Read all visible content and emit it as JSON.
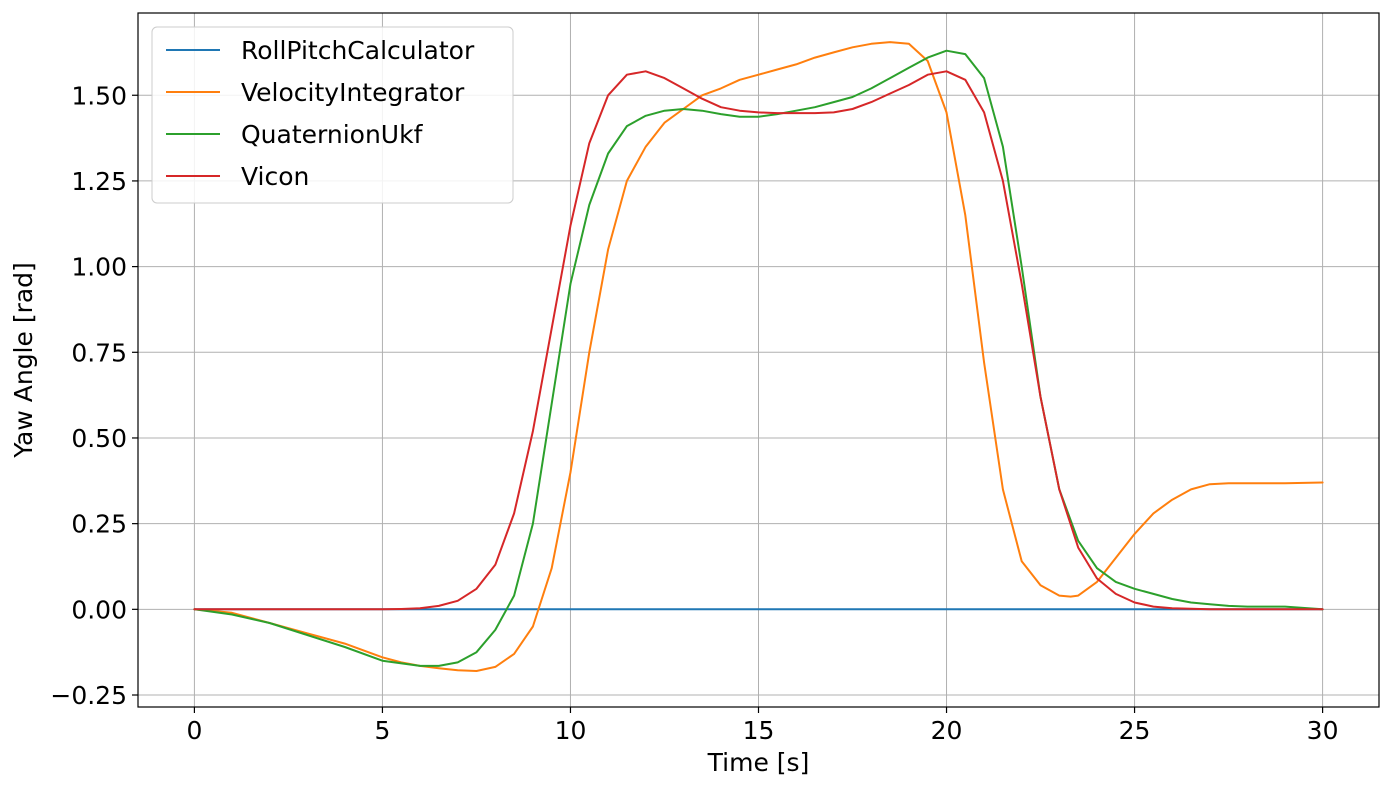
{
  "chart_data": {
    "type": "line",
    "xlabel": "Time [s]",
    "ylabel": "Yaw Angle [rad]",
    "xlim": [
      -1.5,
      31.5
    ],
    "ylim": [
      -0.285,
      1.74
    ],
    "xticks": [
      0,
      5,
      10,
      15,
      20,
      25,
      30
    ],
    "xtick_labels": [
      "0",
      "5",
      "10",
      "15",
      "20",
      "25",
      "30"
    ],
    "yticks": [
      -0.25,
      0.0,
      0.25,
      0.5,
      0.75,
      1.0,
      1.25,
      1.5
    ],
    "ytick_labels": [
      "−0.25",
      "0.00",
      "0.25",
      "0.50",
      "0.75",
      "1.00",
      "1.25",
      "1.50"
    ],
    "grid": true,
    "legend_position": "top-left",
    "series": [
      {
        "name": "RollPitchCalculator",
        "color": "#1f77b4",
        "x": [
          0,
          30
        ],
        "y": [
          0.0,
          0.0
        ]
      },
      {
        "name": "VelocityIntegrator",
        "color": "#ff7f0e",
        "x": [
          0,
          1,
          2,
          3,
          4,
          5,
          5.5,
          6,
          6.5,
          7,
          7.5,
          8,
          8.5,
          9,
          9.5,
          10,
          10.5,
          11,
          11.5,
          12,
          12.5,
          13,
          13.5,
          14,
          14.5,
          15,
          15.5,
          16,
          16.5,
          17,
          17.5,
          18,
          18.5,
          19,
          19.5,
          20,
          20.5,
          21,
          21.5,
          22,
          22.5,
          23,
          23.3,
          23.5,
          24,
          24.5,
          25,
          25.5,
          26,
          26.5,
          27,
          27.5,
          28,
          29,
          30
        ],
        "y": [
          0.0,
          -0.01,
          -0.04,
          -0.07,
          -0.1,
          -0.14,
          -0.155,
          -0.165,
          -0.172,
          -0.178,
          -0.18,
          -0.168,
          -0.13,
          -0.05,
          0.12,
          0.4,
          0.75,
          1.05,
          1.25,
          1.35,
          1.42,
          1.46,
          1.5,
          1.52,
          1.545,
          1.56,
          1.575,
          1.59,
          1.61,
          1.625,
          1.64,
          1.65,
          1.655,
          1.65,
          1.6,
          1.45,
          1.15,
          0.72,
          0.35,
          0.14,
          0.07,
          0.04,
          0.037,
          0.04,
          0.08,
          0.15,
          0.22,
          0.28,
          0.32,
          0.35,
          0.365,
          0.368,
          0.368,
          0.368,
          0.37
        ]
      },
      {
        "name": "QuaternionUkf",
        "color": "#2ca02c",
        "x": [
          0,
          1,
          2,
          3,
          4,
          5,
          6,
          6.5,
          7,
          7.5,
          8,
          8.5,
          9,
          9.5,
          10,
          10.5,
          11,
          11.5,
          12,
          12.5,
          13,
          13.5,
          14,
          14.5,
          15,
          15.5,
          16,
          16.5,
          17,
          17.5,
          18,
          18.5,
          19,
          19.5,
          20,
          20.5,
          21,
          21.5,
          22,
          22.5,
          23,
          23.5,
          24,
          24.5,
          25,
          25.5,
          26,
          26.5,
          27,
          27.5,
          28,
          28.5,
          29,
          30
        ],
        "y": [
          0.0,
          -0.015,
          -0.04,
          -0.075,
          -0.11,
          -0.15,
          -0.165,
          -0.165,
          -0.155,
          -0.125,
          -0.06,
          0.04,
          0.25,
          0.6,
          0.95,
          1.18,
          1.33,
          1.41,
          1.44,
          1.455,
          1.46,
          1.455,
          1.445,
          1.437,
          1.437,
          1.445,
          1.455,
          1.465,
          1.48,
          1.495,
          1.52,
          1.55,
          1.58,
          1.61,
          1.63,
          1.62,
          1.55,
          1.35,
          1.0,
          0.62,
          0.35,
          0.2,
          0.12,
          0.08,
          0.06,
          0.045,
          0.03,
          0.02,
          0.015,
          0.01,
          0.008,
          0.008,
          0.008,
          0.0
        ]
      },
      {
        "name": "Vicon",
        "color": "#d62728",
        "x": [
          0,
          1,
          2,
          3,
          4,
          5,
          5.5,
          6,
          6.5,
          7,
          7.5,
          8,
          8.5,
          9,
          9.5,
          10,
          10.5,
          11,
          11.5,
          12,
          12.5,
          13,
          13.5,
          14,
          14.5,
          15,
          15.5,
          16,
          16.5,
          17,
          17.5,
          18,
          18.5,
          19,
          19.5,
          20,
          20.5,
          21,
          21.5,
          22,
          22.5,
          23,
          23.5,
          24,
          24.5,
          25,
          25.5,
          26,
          27,
          28,
          29,
          30
        ],
        "y": [
          0.0,
          0.0,
          0.0,
          0.0,
          0.0,
          0.0,
          0.001,
          0.003,
          0.01,
          0.025,
          0.06,
          0.13,
          0.28,
          0.52,
          0.82,
          1.12,
          1.36,
          1.5,
          1.56,
          1.57,
          1.55,
          1.52,
          1.49,
          1.465,
          1.455,
          1.45,
          1.448,
          1.448,
          1.448,
          1.45,
          1.46,
          1.48,
          1.505,
          1.53,
          1.56,
          1.57,
          1.545,
          1.45,
          1.25,
          0.95,
          0.62,
          0.35,
          0.18,
          0.09,
          0.045,
          0.02,
          0.008,
          0.003,
          0.0,
          0.0,
          0.0,
          0.0
        ]
      }
    ]
  }
}
